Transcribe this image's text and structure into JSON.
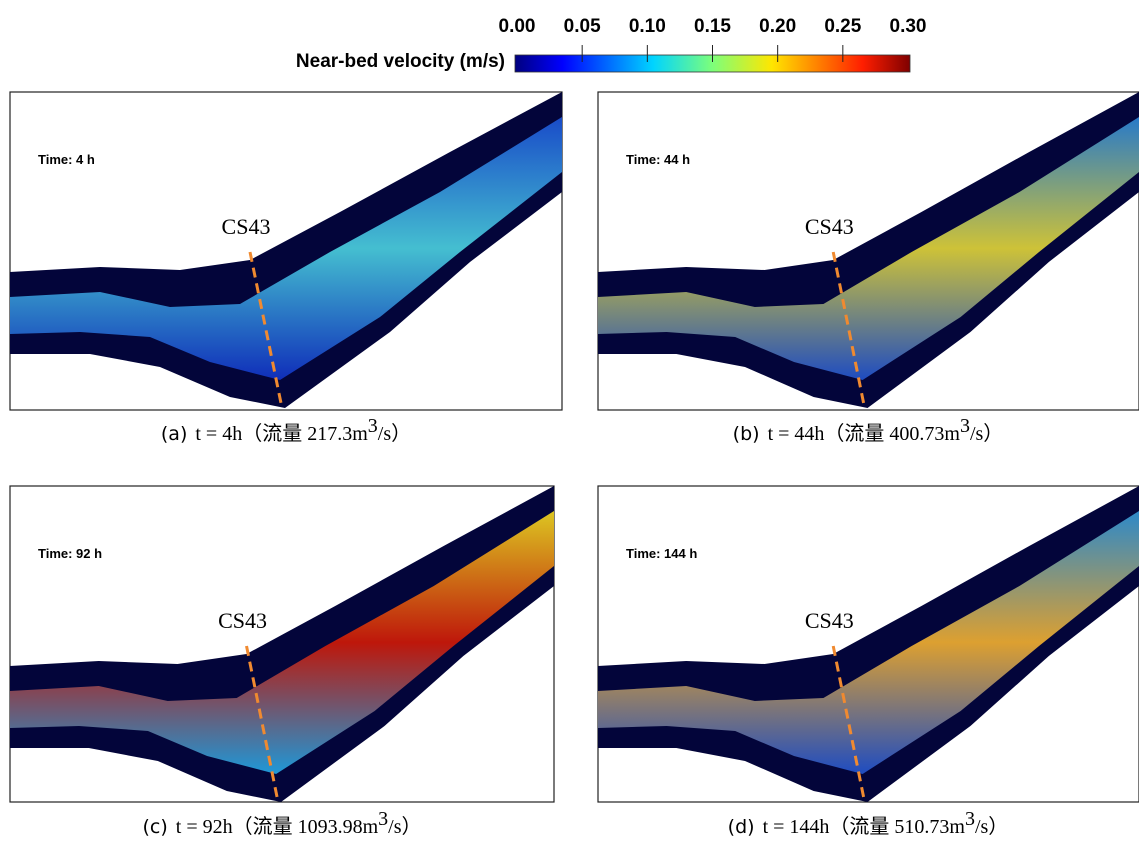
{
  "colorbar": {
    "label": "Near-bed velocity (m/s)",
    "range": [
      0,
      0.3
    ],
    "ticks": [
      {
        "value": 0,
        "label": "0.00"
      },
      {
        "value": 0.05,
        "label": "0.05"
      },
      {
        "value": 0.1,
        "label": "0.10"
      },
      {
        "value": 0.15,
        "label": "0.15"
      },
      {
        "value": 0.2,
        "label": "0.20"
      },
      {
        "value": 0.25,
        "label": "0.25"
      },
      {
        "value": 0.3,
        "label": "0.30"
      }
    ]
  },
  "panels": [
    {
      "time": "Time: 4 h",
      "section": "CS43",
      "caption": {
        "label": "(a)",
        "text": "t = 4h（流量 217.3m",
        "power": "3",
        "tail": "/s）"
      }
    },
    {
      "time": "Time: 44 h",
      "section": "CS43",
      "caption": {
        "label": "(b)",
        "text": "t = 44h（流量 400.73m",
        "power": "3",
        "tail": "/s）"
      }
    },
    {
      "time": "Time: 92 h",
      "section": "CS43",
      "caption": {
        "label": "(c)",
        "text": "t = 92h（流量 1093.98m",
        "power": "3",
        "tail": "/s）"
      }
    },
    {
      "time": "Time: 144 h",
      "section": "CS43",
      "caption": {
        "label": "(d)",
        "text": "t = 144h（流量 510.73m",
        "power": "3",
        "tail": "/s）"
      }
    }
  ]
}
